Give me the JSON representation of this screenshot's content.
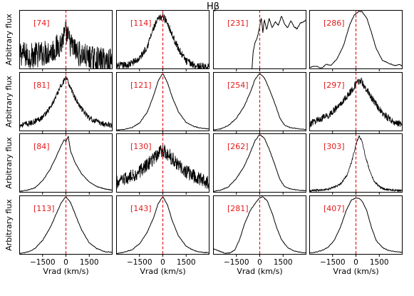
{
  "chart_data": {
    "type": "line",
    "title": "Hβ",
    "xlabel": "Vrad (km/s)",
    "ylabel": "Arbitrary flux",
    "xlim": [
      -3000,
      3000
    ],
    "xticks": [
      -1500,
      0,
      1500
    ],
    "xtick_labels": [
      "−1500",
      "0",
      "1500"
    ],
    "grid": false,
    "colors": {
      "line": "#000000",
      "marker": "#e41a1c"
    },
    "panels": [
      {
        "label": "[74]",
        "noise": 0.22,
        "ymin": 0.35,
        "ymax": 0.95,
        "x": [
          -3000,
          -2400,
          -1800,
          -1200,
          -700,
          -300,
          0,
          300,
          700,
          1200,
          1800,
          2400,
          3000
        ],
        "y": [
          0.52,
          0.48,
          0.5,
          0.52,
          0.55,
          0.62,
          0.72,
          0.6,
          0.52,
          0.48,
          0.45,
          0.44,
          0.43
        ]
      },
      {
        "label": "[114]",
        "noise": 0.1,
        "ymin": 0.05,
        "ymax": 1.0,
        "x": [
          -3000,
          -2200,
          -1500,
          -1000,
          -600,
          -300,
          0,
          300,
          600,
          1000,
          1500,
          2200,
          3000
        ],
        "y": [
          0.1,
          0.12,
          0.22,
          0.42,
          0.7,
          0.85,
          0.9,
          0.8,
          0.6,
          0.38,
          0.18,
          0.1,
          0.08
        ]
      },
      {
        "label": "[231]",
        "noise": 0.0,
        "ymin": 0.0,
        "ymax": 1.0,
        "x": [
          -500,
          -420,
          -300,
          -200,
          -100,
          0,
          100,
          200,
          300,
          450,
          600,
          800,
          1000,
          1200,
          1400,
          1600,
          1800,
          2000,
          2200,
          2400,
          2600,
          2800,
          3000
        ],
        "y": [
          0.0,
          0.3,
          0.45,
          0.5,
          0.6,
          0.72,
          0.88,
          0.62,
          0.84,
          0.66,
          0.86,
          0.7,
          0.8,
          0.74,
          0.9,
          0.76,
          0.7,
          0.82,
          0.72,
          0.68,
          0.78,
          0.8,
          0.84
        ]
      },
      {
        "label": "[286]",
        "noise": 0.0,
        "ymin": 0.0,
        "ymax": 1.0,
        "x": [
          -3000,
          -2600,
          -2200,
          -1900,
          -1600,
          -1200,
          -800,
          -400,
          -100,
          200,
          400,
          700,
          1000,
          1300,
          1700,
          2100,
          2500,
          2800,
          3000
        ],
        "y": [
          0.03,
          0.05,
          0.02,
          0.08,
          0.06,
          0.18,
          0.4,
          0.75,
          0.92,
          0.98,
          0.97,
          0.86,
          0.62,
          0.35,
          0.15,
          0.1,
          0.06,
          0.08,
          0.05
        ]
      },
      {
        "label": "[81]",
        "noise": 0.08,
        "ymin": 0.0,
        "ymax": 1.0,
        "x": [
          -3000,
          -2200,
          -1500,
          -1000,
          -600,
          -300,
          0,
          300,
          600,
          1000,
          1500,
          2200,
          3000
        ],
        "y": [
          0.1,
          0.14,
          0.24,
          0.4,
          0.6,
          0.78,
          0.9,
          0.74,
          0.56,
          0.38,
          0.22,
          0.14,
          0.1
        ]
      },
      {
        "label": "[121]",
        "noise": 0.0,
        "ymin": 0.0,
        "ymax": 1.0,
        "x": [
          -3000,
          -2500,
          -2000,
          -1500,
          -1000,
          -600,
          -300,
          0,
          300,
          600,
          1000,
          1500,
          2000,
          2500,
          3000
        ],
        "y": [
          0.02,
          0.03,
          0.06,
          0.14,
          0.32,
          0.6,
          0.85,
          0.98,
          0.82,
          0.58,
          0.33,
          0.15,
          0.08,
          0.05,
          0.04
        ]
      },
      {
        "label": "[254]",
        "noise": 0.0,
        "ymin": 0.0,
        "ymax": 1.0,
        "x": [
          -3000,
          -2500,
          -2000,
          -1500,
          -1000,
          -600,
          -300,
          0,
          300,
          600,
          1000,
          1300,
          1600,
          2000,
          2500,
          3000
        ],
        "y": [
          0.02,
          0.04,
          0.1,
          0.22,
          0.42,
          0.66,
          0.88,
          0.98,
          0.9,
          0.72,
          0.45,
          0.22,
          0.1,
          0.06,
          0.04,
          0.03
        ]
      },
      {
        "label": "[297]",
        "noise": 0.1,
        "ymin": 0.0,
        "ymax": 1.0,
        "x": [
          -3000,
          -2400,
          -1800,
          -1200,
          -700,
          -300,
          0,
          300,
          700,
          1200,
          1800,
          2400,
          3000
        ],
        "y": [
          0.12,
          0.2,
          0.26,
          0.4,
          0.55,
          0.68,
          0.8,
          0.86,
          0.7,
          0.48,
          0.28,
          0.16,
          0.12
        ]
      },
      {
        "label": "[84]",
        "noise": 0.0,
        "ymin": 0.0,
        "ymax": 1.0,
        "x": [
          -3000,
          -2500,
          -2000,
          -1500,
          -1000,
          -600,
          -300,
          -100,
          0,
          150,
          300,
          600,
          1000,
          1500,
          2000,
          2500,
          3000
        ],
        "y": [
          0.02,
          0.04,
          0.08,
          0.2,
          0.4,
          0.62,
          0.8,
          0.9,
          0.86,
          0.95,
          0.7,
          0.5,
          0.32,
          0.18,
          0.1,
          0.06,
          0.04
        ]
      },
      {
        "label": "[130]",
        "noise": 0.2,
        "ymin": 0.0,
        "ymax": 1.0,
        "x": [
          -3000,
          -2400,
          -1800,
          -1200,
          -700,
          -300,
          0,
          300,
          700,
          1200,
          1800,
          2400,
          3000
        ],
        "y": [
          0.16,
          0.22,
          0.3,
          0.42,
          0.55,
          0.66,
          0.72,
          0.66,
          0.55,
          0.42,
          0.3,
          0.22,
          0.16
        ]
      },
      {
        "label": "[262]",
        "noise": 0.0,
        "ymin": 0.0,
        "ymax": 1.0,
        "x": [
          -3000,
          -2500,
          -2000,
          -1500,
          -1000,
          -600,
          -300,
          0,
          300,
          600,
          1000,
          1300,
          1600,
          2000,
          2500,
          3000
        ],
        "y": [
          0.02,
          0.04,
          0.1,
          0.24,
          0.44,
          0.68,
          0.88,
          0.98,
          0.92,
          0.74,
          0.45,
          0.22,
          0.1,
          0.06,
          0.04,
          0.03
        ]
      },
      {
        "label": "[303]",
        "noise": 0.03,
        "ymin": 0.0,
        "ymax": 1.0,
        "x": [
          -3000,
          -2500,
          -2000,
          -1500,
          -1000,
          -600,
          -300,
          0,
          200,
          400,
          600,
          900,
          1200,
          1600,
          2000,
          2500,
          3000
        ],
        "y": [
          0.03,
          0.04,
          0.05,
          0.08,
          0.14,
          0.28,
          0.5,
          0.8,
          0.96,
          0.86,
          0.62,
          0.36,
          0.18,
          0.08,
          0.05,
          0.04,
          0.03
        ]
      },
      {
        "label": "[113]",
        "noise": 0.0,
        "ymin": 0.0,
        "ymax": 1.0,
        "x": [
          -3000,
          -2500,
          -2000,
          -1500,
          -1000,
          -600,
          -300,
          0,
          300,
          600,
          1000,
          1500,
          2000,
          2500,
          3000
        ],
        "y": [
          0.02,
          0.04,
          0.1,
          0.24,
          0.46,
          0.7,
          0.88,
          0.98,
          0.88,
          0.68,
          0.42,
          0.2,
          0.1,
          0.05,
          0.04
        ]
      },
      {
        "label": "[143]",
        "noise": 0.0,
        "ymin": 0.0,
        "ymax": 1.0,
        "x": [
          -3000,
          -2500,
          -2000,
          -1500,
          -1000,
          -600,
          -300,
          0,
          300,
          600,
          1000,
          1500,
          2000,
          2500,
          3000
        ],
        "y": [
          0.02,
          0.04,
          0.08,
          0.18,
          0.38,
          0.62,
          0.86,
          0.98,
          0.84,
          0.58,
          0.32,
          0.14,
          0.07,
          0.04,
          0.03
        ]
      },
      {
        "label": "[281]",
        "noise": 0.0,
        "ymin": 0.0,
        "ymax": 1.0,
        "x": [
          -3000,
          -2600,
          -2200,
          -1900,
          -1600,
          -1300,
          -1000,
          -600,
          -200,
          0,
          200,
          500,
          800,
          1100,
          1400,
          1800,
          2200,
          2600,
          3000
        ],
        "y": [
          0.1,
          0.06,
          0.02,
          0.03,
          0.08,
          0.25,
          0.5,
          0.75,
          0.9,
          0.96,
          0.98,
          0.9,
          0.7,
          0.45,
          0.25,
          0.12,
          0.06,
          0.04,
          0.03
        ]
      },
      {
        "label": "[407]",
        "noise": 0.0,
        "ymin": 0.0,
        "ymax": 1.0,
        "x": [
          -3000,
          -2600,
          -2200,
          -1800,
          -1400,
          -1000,
          -600,
          -300,
          0,
          200,
          400,
          700,
          1000,
          1300,
          1700,
          2100,
          2500,
          3000
        ],
        "y": [
          0.03,
          0.04,
          0.07,
          0.12,
          0.24,
          0.46,
          0.76,
          0.92,
          0.96,
          0.95,
          0.9,
          0.74,
          0.46,
          0.24,
          0.12,
          0.07,
          0.05,
          0.04
        ]
      }
    ]
  }
}
